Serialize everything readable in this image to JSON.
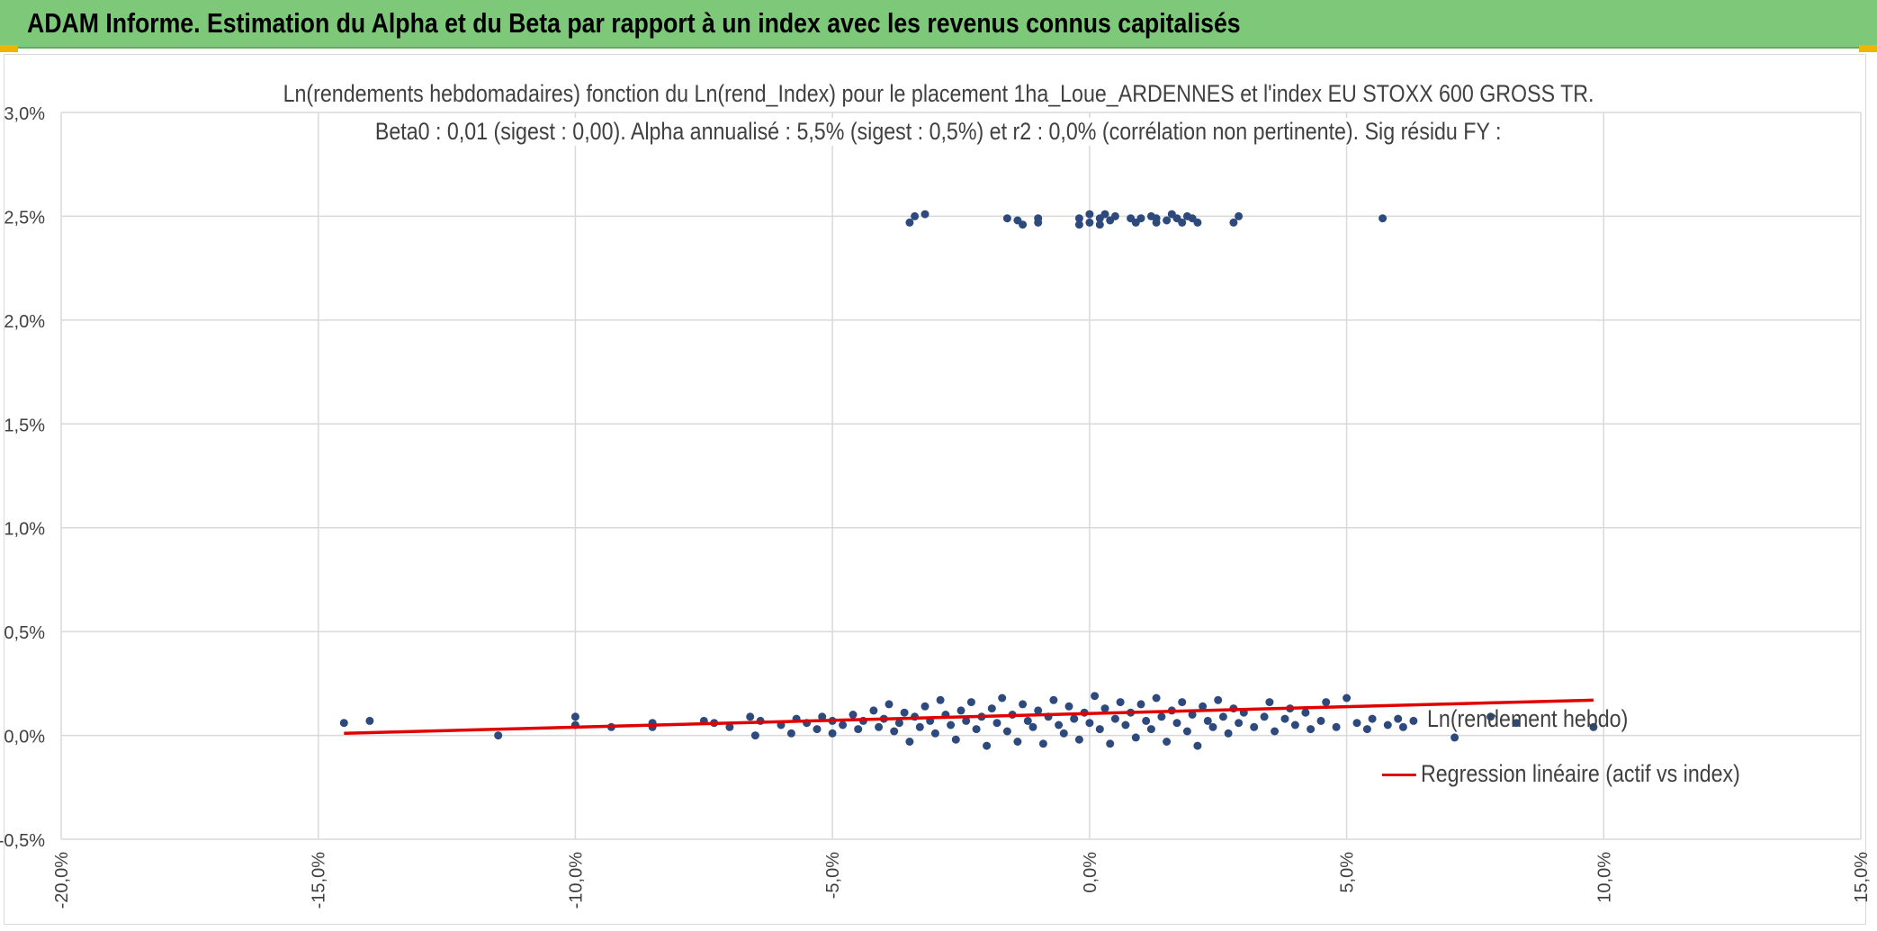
{
  "banner": {
    "title": "ADAM Informe. Estimation du Alpha et du Beta par rapport à un index avec les revenus connus capitalisés"
  },
  "colors": {
    "banner": "#7ec87a",
    "points": "#2e4a7d",
    "regression": "#e00000",
    "grid": "#d9d9d9",
    "text": "#404040"
  },
  "chart_data": {
    "type": "scatter",
    "title": "Ln(rendements hebdomadaires) fonction du Ln(rend_Index) pour le placement 1ha_Loue_ARDENNES et l'index EU STOXX 600 GROSS TR.",
    "subtitle": "Beta0 : 0,01 (sigest : 0,00). Alpha annualisé : 5,5% (sigest : 0,5%) et r2 : 0,0% (corrélation non pertinente). Sig résidu FY :",
    "xlim": [
      -0.2,
      0.15
    ],
    "ylim": [
      -0.005,
      0.03
    ],
    "x_ticks": [
      -0.2,
      -0.15,
      -0.1,
      -0.05,
      0.0,
      0.05,
      0.1,
      0.15
    ],
    "x_tick_labels": [
      "-20,0%",
      "-15,0%",
      "-10,0%",
      "-5,0%",
      "0,0%",
      "5,0%",
      "10,0%",
      "15,0%"
    ],
    "y_ticks": [
      -0.005,
      0.0,
      0.005,
      0.01,
      0.015,
      0.02,
      0.025,
      0.03
    ],
    "y_tick_labels": [
      "-0,5%",
      "0,0%",
      "0,5%",
      "1,0%",
      "1,5%",
      "2,0%",
      "2,5%",
      "3,0%"
    ],
    "grid": true,
    "legend_position": "right",
    "series": [
      {
        "name": "Ln(rendement hebdo)",
        "kind": "scatter",
        "color": "#2e4a7d",
        "points": [
          [
            -0.145,
            0.0006
          ],
          [
            -0.14,
            0.0007
          ],
          [
            -0.115,
            0.0
          ],
          [
            -0.1,
            0.0009
          ],
          [
            -0.1,
            0.0005
          ],
          [
            -0.093,
            0.0004
          ],
          [
            -0.085,
            0.0006
          ],
          [
            -0.085,
            0.0004
          ],
          [
            -0.075,
            0.0007
          ],
          [
            -0.073,
            0.0006
          ],
          [
            -0.07,
            0.0004
          ],
          [
            -0.066,
            0.0009
          ],
          [
            -0.065,
            0.0
          ],
          [
            -0.064,
            0.0007
          ],
          [
            -0.06,
            0.0005
          ],
          [
            -0.058,
            0.0001
          ],
          [
            -0.057,
            0.0008
          ],
          [
            -0.055,
            0.0006
          ],
          [
            -0.053,
            0.0003
          ],
          [
            -0.052,
            0.0009
          ],
          [
            -0.05,
            0.0007
          ],
          [
            -0.05,
            0.0001
          ],
          [
            -0.048,
            0.0005
          ],
          [
            -0.046,
            0.001
          ],
          [
            -0.045,
            0.0003
          ],
          [
            -0.044,
            0.0007
          ],
          [
            -0.042,
            0.0012
          ],
          [
            -0.041,
            0.0004
          ],
          [
            -0.04,
            0.0008
          ],
          [
            -0.039,
            0.0015
          ],
          [
            -0.038,
            0.0002
          ],
          [
            -0.037,
            0.0006
          ],
          [
            -0.036,
            0.0011
          ],
          [
            -0.035,
            -0.0003
          ],
          [
            -0.034,
            0.0009
          ],
          [
            -0.033,
            0.0004
          ],
          [
            -0.032,
            0.0014
          ],
          [
            -0.031,
            0.0007
          ],
          [
            -0.03,
            0.0001
          ],
          [
            -0.029,
            0.0017
          ],
          [
            -0.028,
            0.001
          ],
          [
            -0.027,
            0.0005
          ],
          [
            -0.026,
            -0.0002
          ],
          [
            -0.025,
            0.0012
          ],
          [
            -0.024,
            0.0007
          ],
          [
            -0.023,
            0.0016
          ],
          [
            -0.022,
            0.0003
          ],
          [
            -0.021,
            0.0009
          ],
          [
            -0.02,
            -0.0005
          ],
          [
            -0.019,
            0.0013
          ],
          [
            -0.018,
            0.0006
          ],
          [
            -0.017,
            0.0018
          ],
          [
            -0.016,
            0.0002
          ],
          [
            -0.015,
            0.001
          ],
          [
            -0.014,
            -0.0003
          ],
          [
            -0.013,
            0.0015
          ],
          [
            -0.012,
            0.0007
          ],
          [
            -0.011,
            0.0004
          ],
          [
            -0.01,
            0.0012
          ],
          [
            -0.009,
            -0.0004
          ],
          [
            -0.008,
            0.0009
          ],
          [
            -0.007,
            0.0017
          ],
          [
            -0.006,
            0.0005
          ],
          [
            -0.005,
            0.0001
          ],
          [
            -0.004,
            0.0014
          ],
          [
            -0.003,
            0.0008
          ],
          [
            -0.002,
            -0.0002
          ],
          [
            -0.001,
            0.0011
          ],
          [
            0.0,
            0.0006
          ],
          [
            0.001,
            0.0019
          ],
          [
            0.002,
            0.0003
          ],
          [
            0.003,
            0.0013
          ],
          [
            0.004,
            -0.0004
          ],
          [
            0.005,
            0.0008
          ],
          [
            0.006,
            0.0016
          ],
          [
            0.007,
            0.0005
          ],
          [
            0.008,
            0.0011
          ],
          [
            0.009,
            -0.0001
          ],
          [
            0.01,
            0.0015
          ],
          [
            0.011,
            0.0007
          ],
          [
            0.012,
            0.0003
          ],
          [
            0.013,
            0.0018
          ],
          [
            0.014,
            0.0009
          ],
          [
            0.015,
            -0.0003
          ],
          [
            0.016,
            0.0012
          ],
          [
            0.017,
            0.0006
          ],
          [
            0.018,
            0.0016
          ],
          [
            0.019,
            0.0002
          ],
          [
            0.02,
            0.001
          ],
          [
            0.021,
            -0.0005
          ],
          [
            0.022,
            0.0014
          ],
          [
            0.023,
            0.0007
          ],
          [
            0.024,
            0.0004
          ],
          [
            0.025,
            0.0017
          ],
          [
            0.026,
            0.0009
          ],
          [
            0.027,
            0.0001
          ],
          [
            0.028,
            0.0013
          ],
          [
            0.029,
            0.0006
          ],
          [
            0.03,
            0.0011
          ],
          [
            0.032,
            0.0004
          ],
          [
            0.034,
            0.0009
          ],
          [
            0.035,
            0.0016
          ],
          [
            0.036,
            0.0002
          ],
          [
            0.038,
            0.0008
          ],
          [
            0.039,
            0.0013
          ],
          [
            0.04,
            0.0005
          ],
          [
            0.042,
            0.0011
          ],
          [
            0.043,
            0.0003
          ],
          [
            0.045,
            0.0007
          ],
          [
            0.046,
            0.0016
          ],
          [
            0.048,
            0.0004
          ],
          [
            0.05,
            0.0018
          ],
          [
            0.052,
            0.0006
          ],
          [
            0.054,
            0.0003
          ],
          [
            0.055,
            0.0008
          ],
          [
            0.058,
            0.0005
          ],
          [
            0.06,
            0.0008
          ],
          [
            0.061,
            0.0004
          ],
          [
            0.063,
            0.0007
          ],
          [
            0.071,
            -0.0001
          ],
          [
            0.078,
            0.0009
          ],
          [
            0.083,
            0.0006
          ],
          [
            0.098,
            0.0004
          ],
          [
            -0.035,
            0.0247
          ],
          [
            -0.034,
            0.025
          ],
          [
            -0.032,
            0.0251
          ],
          [
            -0.016,
            0.0249
          ],
          [
            -0.014,
            0.0248
          ],
          [
            -0.013,
            0.0246
          ],
          [
            -0.01,
            0.0249
          ],
          [
            -0.01,
            0.0247
          ],
          [
            -0.002,
            0.0249
          ],
          [
            -0.002,
            0.0246
          ],
          [
            0.0,
            0.0251
          ],
          [
            0.0,
            0.0247
          ],
          [
            0.002,
            0.0249
          ],
          [
            0.002,
            0.0246
          ],
          [
            0.003,
            0.0251
          ],
          [
            0.004,
            0.0248
          ],
          [
            0.005,
            0.025
          ],
          [
            0.008,
            0.0249
          ],
          [
            0.009,
            0.0247
          ],
          [
            0.01,
            0.0249
          ],
          [
            0.012,
            0.025
          ],
          [
            0.013,
            0.0249
          ],
          [
            0.013,
            0.0247
          ],
          [
            0.015,
            0.0248
          ],
          [
            0.016,
            0.0251
          ],
          [
            0.017,
            0.0249
          ],
          [
            0.018,
            0.0247
          ],
          [
            0.019,
            0.025
          ],
          [
            0.02,
            0.0249
          ],
          [
            0.021,
            0.0247
          ],
          [
            0.028,
            0.0247
          ],
          [
            0.029,
            0.025
          ],
          [
            0.057,
            0.0249
          ]
        ]
      },
      {
        "name": "Regression linéaire (actif vs index)",
        "kind": "line",
        "color": "#e00000",
        "points": [
          [
            -0.145,
            0.0001
          ],
          [
            0.098,
            0.0017
          ]
        ]
      }
    ]
  }
}
